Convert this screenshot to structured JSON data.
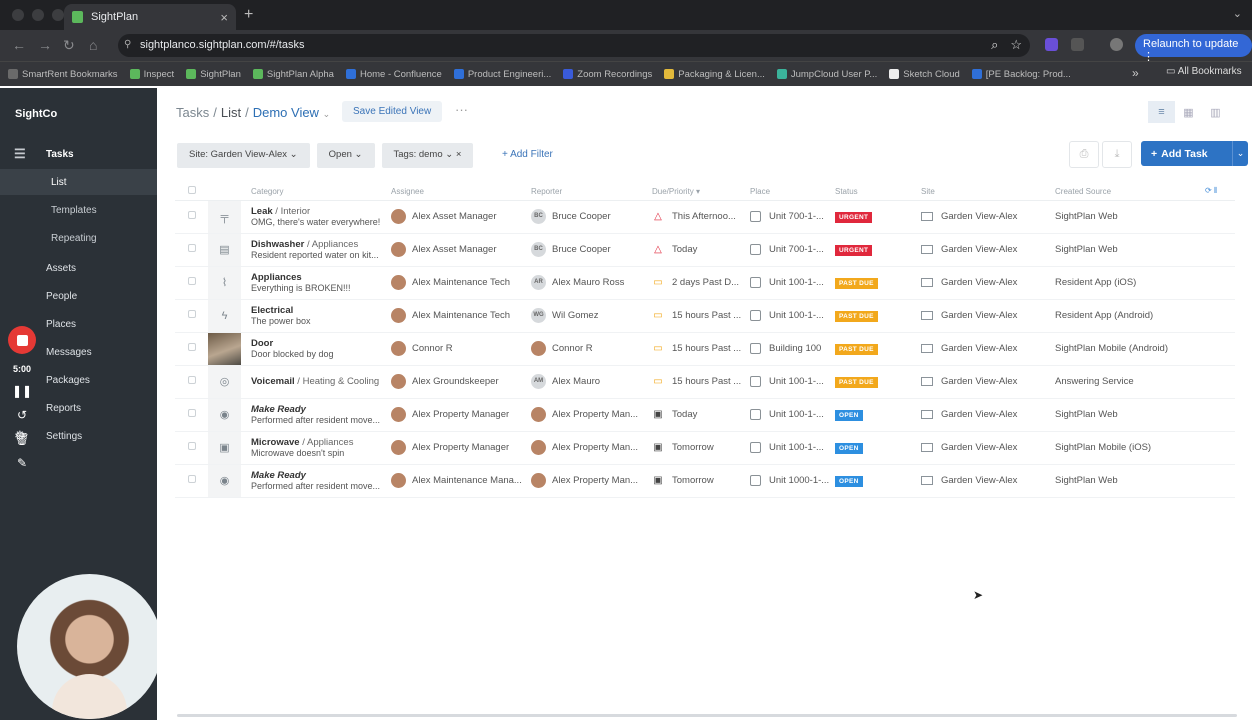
{
  "browser": {
    "tab_title": "SightPlan",
    "url": "sightplanco.sightplan.com/#/tasks",
    "relaunch_label": "Relaunch to update",
    "bookmarks": [
      "SmartRent Bookmarks",
      "Inspect",
      "SightPlan",
      "SightPlan Alpha",
      "Home - Confluence",
      "Product Engineeri...",
      "Zoom Recordings",
      "Packaging & Licen...",
      "JumpCloud User P...",
      "Sketch Cloud",
      "[PE Backlog: Prod..."
    ],
    "all_bookmarks_label": "All Bookmarks"
  },
  "sidebar": {
    "brand": "SightCo",
    "items": [
      {
        "label": "Tasks",
        "icon": "tasks-icon"
      },
      {
        "label": "List"
      },
      {
        "label": "Templates"
      },
      {
        "label": "Repeating"
      },
      {
        "label": "Assets",
        "icon": "assets-icon"
      },
      {
        "label": "People",
        "icon": "people-icon"
      },
      {
        "label": "Places",
        "icon": "places-icon"
      },
      {
        "label": "Messages",
        "icon": "messages-icon"
      },
      {
        "label": "Packages",
        "icon": "packages-icon"
      },
      {
        "label": "Reports",
        "icon": "reports-icon"
      },
      {
        "label": "Settings",
        "icon": "settings-icon"
      }
    ]
  },
  "recorder": {
    "time": "5:00"
  },
  "header": {
    "crumb_tasks": "Tasks",
    "crumb_list": "List",
    "crumb_view": "Demo View",
    "save_label": "Save Edited View",
    "more_label": "···"
  },
  "filters": {
    "site": "Site: Garden View-Alex",
    "status": "Open",
    "tags": "Tags: demo",
    "add_filter": "Add Filter"
  },
  "add_task_label": "Add Task",
  "columns": [
    "Category",
    "Assignee",
    "Reporter",
    "Due/Priority",
    "Place",
    "Status",
    "Site",
    "Created Source"
  ],
  "status_colors": {
    "URGENT": "#e0283c",
    "PAST DUE": "#f2a81c",
    "OPEN": "#2d8fe0"
  },
  "rows": [
    {
      "cat": "Leak",
      "sub": "Interior",
      "italic": false,
      "desc": "OMG, there's water everywhere!",
      "icon": "faucet-icon",
      "assignee": "Alex Asset Manager",
      "reporter": "Bruce Cooper",
      "rep_init": "BC",
      "due": "This Afternoo...",
      "due_icon": "△",
      "due_color": "#e0283c",
      "place": "Unit 700-1-...",
      "status": "URGENT",
      "site": "Garden View-Alex",
      "source": "SightPlan Web"
    },
    {
      "cat": "Dishwasher",
      "sub": "Appliances",
      "italic": false,
      "desc": "Resident reported water on kit...",
      "icon": "dishwasher-icon",
      "assignee": "Alex Asset Manager",
      "reporter": "Bruce Cooper",
      "rep_init": "BC",
      "due": "Today",
      "due_icon": "△",
      "due_color": "#e0283c",
      "place": "Unit 700-1-...",
      "status": "URGENT",
      "site": "Garden View-Alex",
      "source": "SightPlan Web"
    },
    {
      "cat": "Appliances",
      "sub": "",
      "italic": false,
      "desc": "Everything is BROKEN!!!",
      "icon": "appliance-icon",
      "assignee": "Alex Maintenance Tech",
      "reporter": "Alex Mauro Ross",
      "rep_init": "AR",
      "due": "2 days Past D...",
      "due_icon": "▭",
      "due_color": "#f2a81c",
      "place": "Unit 100-1-...",
      "status": "PAST DUE",
      "site": "Garden View-Alex",
      "source": "Resident App (iOS)"
    },
    {
      "cat": "Electrical",
      "sub": "",
      "italic": false,
      "desc": "The power box",
      "icon": "electrical-icon",
      "assignee": "Alex Maintenance Tech",
      "reporter": "Wil Gomez",
      "rep_init": "WG",
      "due": "15 hours Past ...",
      "due_icon": "▭",
      "due_color": "#f2a81c",
      "place": "Unit 100-1-...",
      "status": "PAST DUE",
      "site": "Garden View-Alex",
      "source": "Resident App (Android)"
    },
    {
      "cat": "Door",
      "sub": "",
      "italic": false,
      "desc": "Door blocked by dog",
      "icon": "photo",
      "assignee": "Connor R",
      "reporter": "Connor R",
      "rep_init": "",
      "due": "15 hours Past ...",
      "due_icon": "▭",
      "due_color": "#f2a81c",
      "place": "Building 100",
      "status": "PAST DUE",
      "site": "Garden View-Alex",
      "source": "SightPlan Mobile (Android)"
    },
    {
      "cat": "Voicemail",
      "sub": "Heating & Cooling",
      "italic": false,
      "desc": "",
      "icon": "voicemail-icon",
      "assignee": "Alex Groundskeeper",
      "reporter": "Alex Mauro",
      "rep_init": "AM",
      "due": "15 hours Past ...",
      "due_icon": "▭",
      "due_color": "#f2a81c",
      "place": "Unit 100-1-...",
      "status": "PAST DUE",
      "site": "Garden View-Alex",
      "source": "Answering Service"
    },
    {
      "cat": "Make Ready",
      "sub": "",
      "italic": true,
      "desc": "Performed after resident move...",
      "icon": "make-ready-icon",
      "assignee": "Alex Property Manager",
      "reporter": "Alex Property Man...",
      "rep_init": "",
      "due": "Today",
      "due_icon": "▣",
      "due_color": "#444",
      "place": "Unit 100-1-...",
      "status": "OPEN",
      "site": "Garden View-Alex",
      "source": "SightPlan Web"
    },
    {
      "cat": "Microwave",
      "sub": "Appliances",
      "italic": false,
      "desc": "Microwave doesn't spin",
      "icon": "microwave-icon",
      "assignee": "Alex Property Manager",
      "reporter": "Alex Property Man...",
      "rep_init": "",
      "due": "Tomorrow",
      "due_icon": "▣",
      "due_color": "#444",
      "place": "Unit 100-1-...",
      "status": "OPEN",
      "site": "Garden View-Alex",
      "source": "SightPlan Mobile (iOS)"
    },
    {
      "cat": "Make Ready",
      "sub": "",
      "italic": true,
      "desc": "Performed after resident move...",
      "icon": "make-ready-icon",
      "assignee": "Alex Maintenance Mana...",
      "reporter": "Alex Property Man...",
      "rep_init": "",
      "due": "Tomorrow",
      "due_icon": "▣",
      "due_color": "#444",
      "place": "Unit 1000-1-...",
      "status": "OPEN",
      "site": "Garden View-Alex",
      "source": "SightPlan Web"
    }
  ]
}
